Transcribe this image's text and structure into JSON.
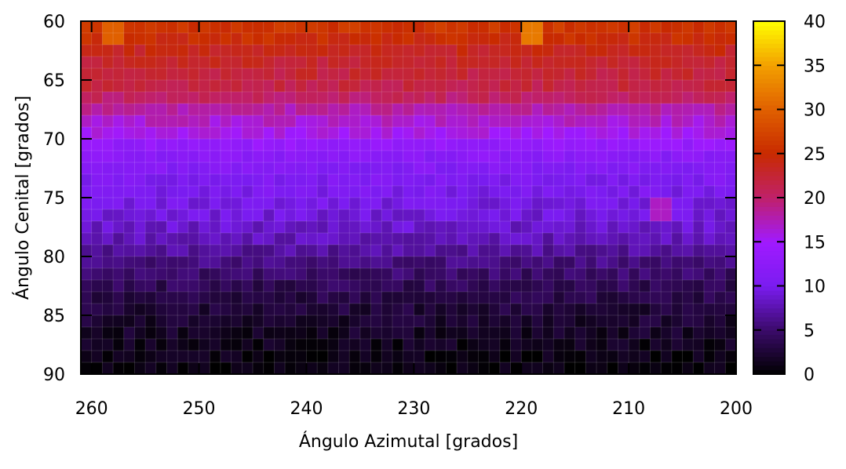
{
  "chart_data": {
    "type": "heatmap",
    "title": "",
    "xlabel": "Ángulo Azimutal [grados]",
    "ylabel": "Ángulo Cenital [grados]",
    "x_range": [
      261,
      200
    ],
    "y_range": [
      60,
      90
    ],
    "x_ticks": [
      260,
      250,
      240,
      230,
      220,
      210,
      200
    ],
    "y_ticks": [
      60,
      65,
      70,
      75,
      80,
      85,
      90
    ],
    "colorbar": {
      "range": [
        0,
        40
      ],
      "ticks": [
        0,
        5,
        10,
        15,
        20,
        25,
        30,
        35,
        40
      ],
      "colormap": [
        "#000000",
        "#3b0a6a",
        "#7a1cf0",
        "#a01aff",
        "#c0206a",
        "#c82a00",
        "#e06000",
        "#f3a000",
        "#ffff00"
      ]
    },
    "grid": true,
    "cell_size_deg": 1,
    "rows": [
      {
        "zenith": "60-62",
        "value": 26,
        "notes": "orange band"
      },
      {
        "zenith": "62-67",
        "value": 22
      },
      {
        "zenith": "67-70",
        "value": 17
      },
      {
        "zenith": "70-73",
        "value": 12
      },
      {
        "zenith": "73-77",
        "value": 10
      },
      {
        "zenith": "77-80",
        "value": 8
      },
      {
        "zenith": "80-83",
        "value": 5
      },
      {
        "zenith": "83-86",
        "value": 3
      },
      {
        "zenith": "86-89",
        "value": 1.5
      },
      {
        "zenith": "89-90",
        "value": 0.5
      }
    ],
    "hotspots": [
      {
        "azimuth": 258,
        "zenith": 61,
        "value": 30
      },
      {
        "azimuth": 219,
        "zenith": 60.5,
        "value": 32
      },
      {
        "azimuth": 207,
        "zenith": 76,
        "value": 17
      }
    ]
  }
}
